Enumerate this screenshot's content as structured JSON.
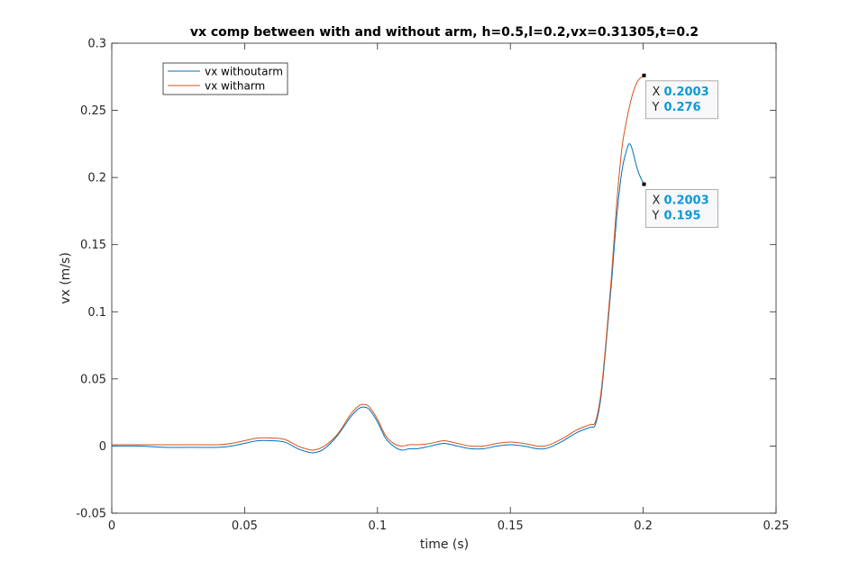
{
  "chart_data": {
    "type": "line",
    "title": "vx comp between with and without arm, h=0.5,l=0.2,vx=0.31305,t=0.2",
    "xlabel": "time (s)",
    "ylabel": "vx (m/s)",
    "xlim": [
      0,
      0.25
    ],
    "ylim": [
      -0.05,
      0.3
    ],
    "xticks": [
      0,
      0.05,
      0.1,
      0.15,
      0.2,
      0.25
    ],
    "xtick_labels": [
      "0",
      "0.05",
      "0.1",
      "0.15",
      "0.2",
      "0.25"
    ],
    "yticks": [
      -0.05,
      0,
      0.05,
      0.1,
      0.15,
      0.2,
      0.25,
      0.3
    ],
    "ytick_labels": [
      "-0.05",
      "0",
      "0.05",
      "0.1",
      "0.15",
      "0.2",
      "0.25",
      "0.3"
    ],
    "grid": false,
    "legend_position": "top-left",
    "series": [
      {
        "name": "vx withoutarm",
        "color": "#0072bd",
        "x": [
          0,
          0.01,
          0.02,
          0.03,
          0.04,
          0.045,
          0.05,
          0.055,
          0.06,
          0.065,
          0.07,
          0.073,
          0.076,
          0.08,
          0.085,
          0.09,
          0.093,
          0.095,
          0.097,
          0.1,
          0.103,
          0.106,
          0.109,
          0.112,
          0.115,
          0.12,
          0.125,
          0.13,
          0.135,
          0.14,
          0.145,
          0.15,
          0.155,
          0.16,
          0.163,
          0.166,
          0.17,
          0.175,
          0.18,
          0.182,
          0.184,
          0.186,
          0.188,
          0.19,
          0.192,
          0.194,
          0.195,
          0.196,
          0.197,
          0.198,
          0.199,
          0.2003
        ],
        "y": [
          0,
          0,
          -0.001,
          -0.001,
          -0.001,
          0.0,
          0.002,
          0.004,
          0.004,
          0.003,
          -0.002,
          -0.004,
          -0.005,
          -0.002,
          0.008,
          0.022,
          0.028,
          0.029,
          0.027,
          0.018,
          0.006,
          0.0,
          -0.003,
          -0.002,
          -0.002,
          0.0,
          0.002,
          0.0,
          -0.002,
          -0.002,
          0.0,
          0.001,
          0.0,
          -0.002,
          -0.002,
          0.0,
          0.004,
          0.01,
          0.014,
          0.016,
          0.035,
          0.075,
          0.12,
          0.17,
          0.205,
          0.222,
          0.225,
          0.22,
          0.212,
          0.205,
          0.2,
          0.195
        ]
      },
      {
        "name": "vx witharm",
        "color": "#d95319",
        "x": [
          0,
          0.01,
          0.02,
          0.03,
          0.04,
          0.045,
          0.05,
          0.055,
          0.06,
          0.065,
          0.07,
          0.073,
          0.076,
          0.08,
          0.085,
          0.09,
          0.093,
          0.095,
          0.097,
          0.1,
          0.103,
          0.106,
          0.109,
          0.112,
          0.115,
          0.12,
          0.125,
          0.13,
          0.135,
          0.14,
          0.145,
          0.15,
          0.155,
          0.16,
          0.163,
          0.166,
          0.17,
          0.175,
          0.18,
          0.182,
          0.184,
          0.186,
          0.188,
          0.19,
          0.192,
          0.194,
          0.196,
          0.198,
          0.2003
        ],
        "y": [
          0.001,
          0.001,
          0.001,
          0.001,
          0.001,
          0.002,
          0.004,
          0.006,
          0.006,
          0.005,
          0.0,
          -0.002,
          -0.003,
          0.0,
          0.009,
          0.024,
          0.03,
          0.031,
          0.029,
          0.02,
          0.008,
          0.002,
          0.0,
          0.001,
          0.001,
          0.002,
          0.004,
          0.002,
          0.0,
          0.0,
          0.002,
          0.003,
          0.002,
          0.0,
          0.0,
          0.002,
          0.006,
          0.012,
          0.016,
          0.018,
          0.038,
          0.078,
          0.125,
          0.18,
          0.222,
          0.245,
          0.262,
          0.272,
          0.276
        ]
      }
    ],
    "datatips": [
      {
        "x_label": "X",
        "x_value": "0.2003",
        "y_label": "Y",
        "y_value": "0.276",
        "x": 0.2003,
        "y": 0.276
      },
      {
        "x_label": "X",
        "x_value": "0.2003",
        "y_label": "Y",
        "y_value": "0.195",
        "x": 0.2003,
        "y": 0.195
      }
    ]
  }
}
